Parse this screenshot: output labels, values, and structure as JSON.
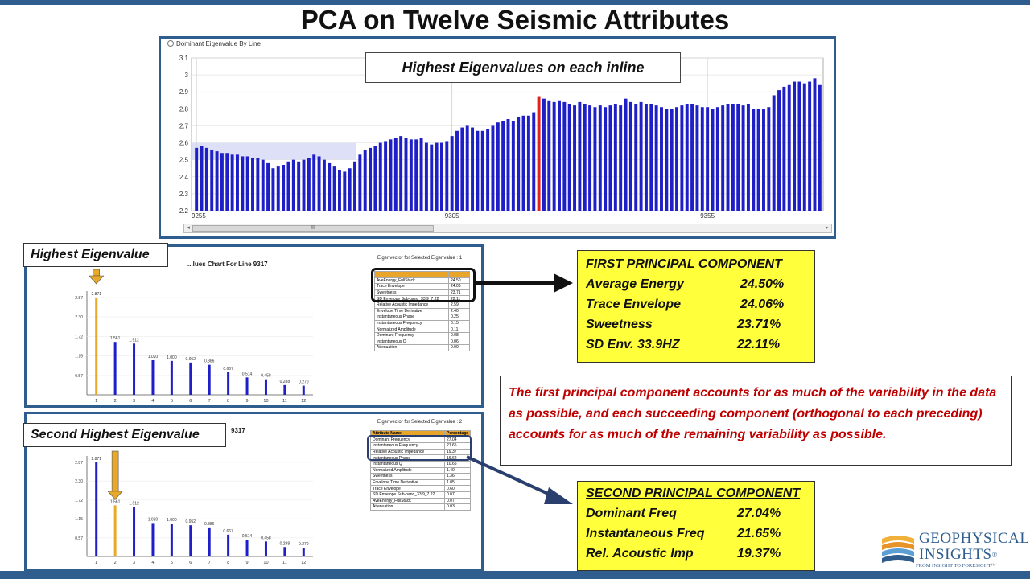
{
  "slide": {
    "title": "PCA on Twelve Seismic Attributes"
  },
  "main_chart": {
    "window_title": "Dominant Eigenvalue By Line",
    "callout": "Highest Eigenvalues on each inline",
    "scroll_thumb": "III"
  },
  "colors": {
    "bar_blue": "#1f1fc8",
    "highlight_red": "#e51e1e",
    "gold": "#e8a82a",
    "frame_blue": "#2e5d8e",
    "callout_yellow": "#ffff3c",
    "text_red": "#c00000"
  },
  "chart_data": [
    {
      "type": "bar",
      "title": "",
      "ylim": [
        2.2,
        3.1
      ],
      "yticks": [
        "3.1",
        "3",
        "2.9",
        "2.8",
        "2.7",
        "2.6",
        "2.5",
        "2.4",
        "2.3",
        "2.2"
      ],
      "x_start": 9255,
      "x_labels": [
        "9255",
        "9305",
        "9355"
      ],
      "band": [
        2.5,
        2.6
      ],
      "highlight_index": 67,
      "values": [
        2.57,
        2.58,
        2.57,
        2.56,
        2.55,
        2.54,
        2.54,
        2.53,
        2.53,
        2.52,
        2.52,
        2.51,
        2.51,
        2.5,
        2.48,
        2.45,
        2.46,
        2.47,
        2.49,
        2.5,
        2.49,
        2.5,
        2.51,
        2.53,
        2.52,
        2.5,
        2.48,
        2.46,
        2.44,
        2.43,
        2.45,
        2.49,
        2.53,
        2.56,
        2.57,
        2.58,
        2.6,
        2.61,
        2.62,
        2.63,
        2.64,
        2.63,
        2.62,
        2.62,
        2.63,
        2.6,
        2.59,
        2.6,
        2.6,
        2.61,
        2.64,
        2.67,
        2.69,
        2.7,
        2.69,
        2.67,
        2.67,
        2.68,
        2.7,
        2.72,
        2.73,
        2.74,
        2.73,
        2.75,
        2.76,
        2.76,
        2.78,
        2.87,
        2.86,
        2.85,
        2.84,
        2.85,
        2.84,
        2.83,
        2.82,
        2.84,
        2.83,
        2.82,
        2.81,
        2.82,
        2.81,
        2.82,
        2.83,
        2.82,
        2.86,
        2.84,
        2.83,
        2.84,
        2.83,
        2.83,
        2.82,
        2.81,
        2.8,
        2.8,
        2.81,
        2.82,
        2.83,
        2.83,
        2.82,
        2.81,
        2.81,
        2.8,
        2.81,
        2.82,
        2.83,
        2.83,
        2.83,
        2.82,
        2.83,
        2.8,
        2.8,
        2.8,
        2.81,
        2.88,
        2.91,
        2.93,
        2.94,
        2.96,
        2.96,
        2.95,
        2.96,
        2.98,
        2.94
      ]
    },
    {
      "type": "bar",
      "title": "...lues Chart For Line   9317",
      "yticks": [
        "2.87",
        "2.30",
        "1.72",
        "1.15",
        "0.57"
      ],
      "ylim": [
        0,
        2.87
      ],
      "categories": [
        "1",
        "2",
        "3",
        "4",
        "5",
        "6",
        "7",
        "8",
        "9",
        "10",
        "11",
        "12"
      ],
      "values": [
        2.871,
        1.561,
        1.512,
        1.02,
        1.0,
        0.952,
        0.886,
        0.667,
        0.514,
        0.458,
        0.288,
        0.27
      ],
      "value_labels": [
        "2.871",
        "1.561",
        "1.512",
        "1.020",
        "1.000",
        "0.952",
        "0.886",
        "0.667",
        "0.514",
        "0.458",
        "0.288",
        "0.270"
      ],
      "highlight_index": 0
    },
    {
      "type": "bar",
      "title": "9317",
      "yticks": [
        "2.87",
        "2.30",
        "1.72",
        "1.15",
        "0.57"
      ],
      "ylim": [
        0,
        2.87
      ],
      "categories": [
        "1",
        "2",
        "3",
        "4",
        "5",
        "6",
        "7",
        "8",
        "9",
        "10",
        "11",
        "12"
      ],
      "values": [
        2.871,
        1.561,
        1.512,
        1.02,
        1.0,
        0.952,
        0.886,
        0.667,
        0.514,
        0.458,
        0.288,
        0.27
      ],
      "value_labels": [
        "2.871",
        "1.561",
        "1.512",
        "1.020",
        "1.000",
        "0.952",
        "0.886",
        "0.667",
        "0.514",
        "0.458",
        "0.288",
        "0.270"
      ],
      "highlight_index": 1
    }
  ],
  "panel1": {
    "label": "Highest Eigenvalue",
    "ev_header": "Eigenvector for Selected Eigenvalue : 1",
    "table": [
      [
        "AveEnergy_FullStack",
        "24.50"
      ],
      [
        "Trace Envelope",
        "24.06"
      ],
      [
        "Sweetness",
        "23.71"
      ],
      [
        "SD Envelope Sub-band_33.9_7.22",
        "22.11"
      ],
      [
        "Relative Acoustic Impedance",
        "2.59"
      ],
      [
        "Envelope Time Derivative",
        "2.40"
      ],
      [
        "Instantaneous Phase",
        "0.25"
      ],
      [
        "Instantaneous Frequency",
        "0.15"
      ],
      [
        "Normalized Amplitude",
        "0.11"
      ],
      [
        "Dominant Frequency",
        "0.08"
      ],
      [
        "Instantaneous Q",
        "0.06"
      ],
      [
        "Attenuation",
        "0.00"
      ]
    ]
  },
  "panel2": {
    "label": "Second Highest Eigenvalue",
    "ev_header": "Eigenvector for Selected Eigenvalue : 2",
    "table_head": [
      "Attribute Name",
      "Percentage"
    ],
    "table": [
      [
        "Dominant Frequency",
        "27.04"
      ],
      [
        "Instantaneous Frequency",
        "21.65"
      ],
      [
        "Relative Acoustic Impedance",
        "19.37"
      ],
      [
        "Instantaneous Phase",
        "16.62"
      ],
      [
        "Instantaneous Q",
        "10.65"
      ],
      [
        "Normalized Amplitude",
        "1.40"
      ],
      [
        "Sweetness",
        "1.36"
      ],
      [
        "Envelope Time Derivative",
        "1.05"
      ],
      [
        "Trace Envelope",
        "0.60"
      ],
      [
        "SD Envelope Sub-band_33.9_7.22",
        "0.07"
      ],
      [
        "AveEnergy_FullStack",
        "0.07"
      ],
      [
        "Attenuation",
        "0.03"
      ]
    ]
  },
  "first_pc": {
    "heading": "FIRST PRINCIPAL COMPONENT",
    "rows": [
      [
        "Average  Energy",
        "24.50%"
      ],
      [
        "Trace Envelope",
        "24.06%"
      ],
      [
        "Sweetness",
        "23.71%"
      ],
      [
        "SD Env. 33.9HZ",
        "22.11%"
      ]
    ]
  },
  "second_pc": {
    "heading": "SECOND PRINCIPAL COMPONENT",
    "rows": [
      [
        "Dominant Freq",
        "27.04%"
      ],
      [
        "Instantaneous  Freq",
        "21.65%"
      ],
      [
        "Rel. Acoustic Imp",
        "19.37%"
      ]
    ]
  },
  "description": "The first principal component accounts for as much of the variability in the data as possible, and each succeeding component (orthogonal to each preceding) accounts for as much of the remaining variability as possible.",
  "logo": {
    "name_line1": "GEOPHYSICAL",
    "name_line2": "INSIGHTS",
    "mark": "®",
    "tagline": "FROM INSIGHT TO FORESIGHT™"
  }
}
